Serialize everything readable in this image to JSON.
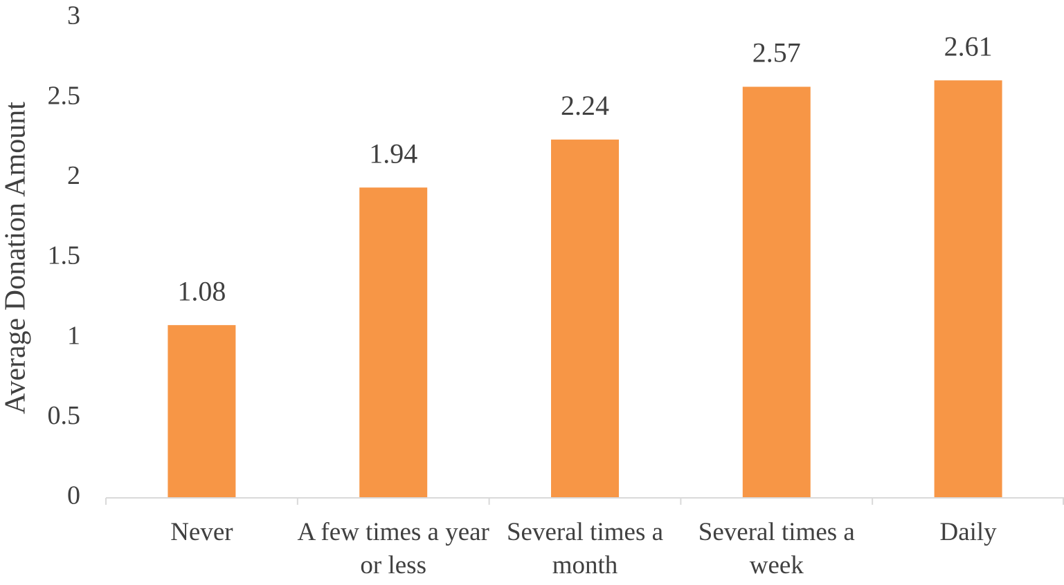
{
  "chart_data": {
    "type": "bar",
    "y_axis_label": "Average Donation Amount",
    "categories": [
      "Never",
      "A few times a year or less",
      "Several times a month",
      "Several times a week",
      "Daily"
    ],
    "values": [
      1.08,
      1.94,
      2.24,
      2.57,
      2.61
    ],
    "color": "#f79646",
    "ylim": [
      0,
      3
    ],
    "yticks": [
      0,
      0.5,
      1,
      1.5,
      2,
      2.5,
      3
    ],
    "grid": false
  }
}
